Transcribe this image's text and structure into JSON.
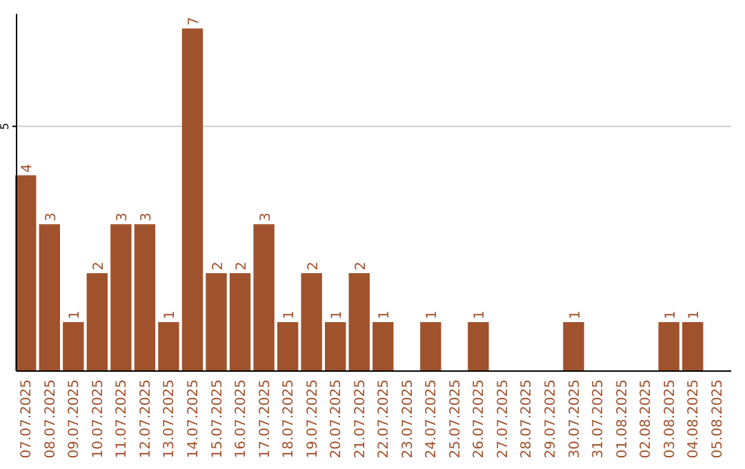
{
  "chart_data": {
    "type": "bar",
    "categories": [
      "07.07.2025",
      "08.07.2025",
      "09.07.2025",
      "10.07.2025",
      "11.07.2025",
      "12.07.2025",
      "13.07.2025",
      "14.07.2025",
      "15.07.2025",
      "16.07.2025",
      "17.07.2025",
      "18.07.2025",
      "19.07.2025",
      "20.07.2025",
      "21.07.2025",
      "22.07.2025",
      "23.07.2025",
      "24.07.2025",
      "25.07.2025",
      "26.07.2025",
      "27.07.2025",
      "28.07.2025",
      "29.07.2025",
      "30.07.2025",
      "31.07.2025",
      "01.08.2025",
      "02.08.2025",
      "03.08.2025",
      "04.08.2025",
      "05.08.2025"
    ],
    "values": [
      4,
      3,
      1,
      2,
      3,
      3,
      1,
      7,
      2,
      2,
      3,
      1,
      2,
      1,
      2,
      1,
      0,
      1,
      0,
      1,
      0,
      0,
      0,
      1,
      0,
      0,
      0,
      1,
      1,
      0
    ],
    "value_labels": [
      "4",
      "3",
      "1",
      "2",
      "3",
      "3",
      "1",
      "7",
      "2",
      "2",
      "3",
      "1",
      "2",
      "1",
      "2",
      "1",
      null,
      "1",
      null,
      "1",
      null,
      null,
      null,
      "1",
      null,
      null,
      null,
      "1",
      "1",
      null
    ],
    "color": "#a0522d",
    "ylim": [
      0,
      7.3
    ],
    "yticks": [
      5
    ],
    "grid": "y"
  }
}
